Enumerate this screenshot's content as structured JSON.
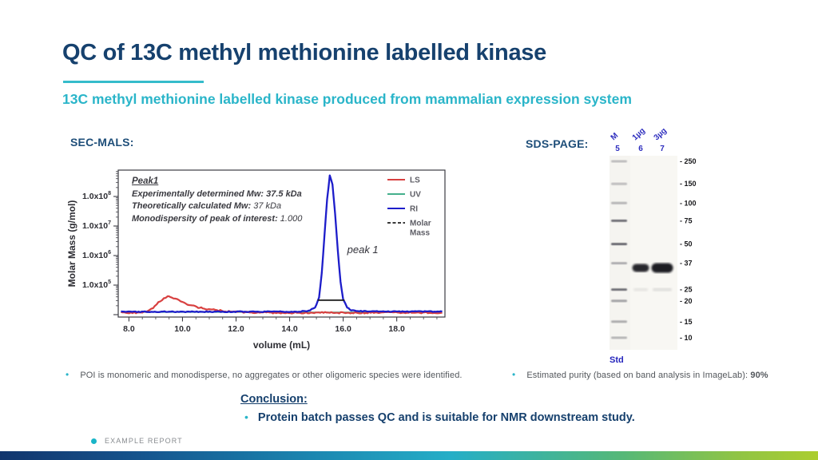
{
  "slide": {
    "title": "QC of 13C methyl methionine labelled kinase",
    "subtitle": "13C methyl methionine labelled kinase produced from mammalian expression system",
    "footer_text": "EXAMPLE REPORT"
  },
  "sec_mals": {
    "heading": "SEC-MALS:",
    "bullet": "POI is monomeric and monodisperse, no aggregates or other oligomeric species were identified."
  },
  "sds_page": {
    "heading": "SDS-PAGE:",
    "bullet_label": "Estimated purity (based on band analysis in ImageLab): ",
    "bullet_value": "90%",
    "gel": {
      "lane_loads": [
        "M",
        "1µg",
        "3µg"
      ],
      "lane_numbers": [
        "5",
        "6",
        "7"
      ],
      "std_label": "Std",
      "ladder_kda": [
        "250",
        "150",
        "100",
        "75",
        "50",
        "37",
        "25",
        "20",
        "15",
        "10"
      ],
      "ladder_fracs": [
        0.029,
        0.145,
        0.244,
        0.335,
        0.455,
        0.554,
        0.69,
        0.748,
        0.855,
        0.938
      ],
      "ladder_intensity": [
        0.3,
        0.3,
        0.35,
        0.75,
        0.8,
        0.4,
        0.75,
        0.45,
        0.4,
        0.35
      ],
      "sample_bands": [
        {
          "lane": 2,
          "frac": 0.578,
          "w": 21,
          "h": 10,
          "opacity": 0.92
        },
        {
          "lane": 3,
          "frac": 0.578,
          "w": 27,
          "h": 12,
          "opacity": 0.97
        }
      ],
      "faint_bands": [
        {
          "lane": 2,
          "frac": 0.69,
          "w": 18,
          "h": 4,
          "opacity": 0.08
        },
        {
          "lane": 3,
          "frac": 0.69,
          "w": 24,
          "h": 4,
          "opacity": 0.1
        }
      ]
    }
  },
  "conclusion": {
    "heading": "Conclusion:",
    "bullet": "Protein batch passes QC and is suitable for NMR downstream study."
  },
  "chart_data": {
    "type": "line",
    "title": "",
    "xlabel": "volume (mL)",
    "ylabel": "Molar Mass (g/mol)",
    "x_range": [
      7.6,
      19.8
    ],
    "x_major_ticks": [
      8,
      10,
      12,
      14,
      16,
      18
    ],
    "x_major_tick_labels": [
      "8.0",
      "10.0",
      "12.0",
      "14.0",
      "16.0",
      "18.0"
    ],
    "x_minor_tick_step": 0.5,
    "y_axis": {
      "scale": "log",
      "unit": "g/mol",
      "labeled_exponents": [
        8,
        7,
        6,
        5
      ],
      "label_mantissa": "1.0x10"
    },
    "grid": false,
    "legend": {
      "position": "top-right",
      "entries": [
        {
          "label": "LS",
          "color": "#d84040",
          "dash": false
        },
        {
          "label": "UV",
          "color": "#44b08c",
          "dash": false
        },
        {
          "label": "RI",
          "color": "#1d1dca",
          "dash": false
        },
        {
          "label": "Molar Mass",
          "color": "#3a3a3a",
          "dash": true
        }
      ]
    },
    "annotation": {
      "title": "Peak1",
      "lines": [
        {
          "label": "Experimentally determined Mw:",
          "value": " 37.5 kDa",
          "value_bold": true
        },
        {
          "label": "Theoretically calculated Mw:",
          "value": " 37 kDa",
          "value_bold": false
        },
        {
          "label": "Monodispersity of peak of interest:",
          "value": " 1.000",
          "value_bold": false
        }
      ]
    },
    "peak_label": {
      "text": "peak 1",
      "x": 16.15,
      "frac": 0.46
    },
    "series": [
      {
        "name": "UV",
        "color": "#44b08c",
        "width": 1.4,
        "noise": 0,
        "points": [
          [
            7.7,
            0.033
          ],
          [
            19.7,
            0.033
          ]
        ]
      },
      {
        "name": "LS",
        "color": "#d84040",
        "width": 2.2,
        "noise": 0.005,
        "points": [
          [
            7.7,
            0.03
          ],
          [
            8.2,
            0.03
          ],
          [
            8.5,
            0.032
          ],
          [
            8.7,
            0.042
          ],
          [
            8.9,
            0.065
          ],
          [
            9.1,
            0.098
          ],
          [
            9.3,
            0.128
          ],
          [
            9.45,
            0.14
          ],
          [
            9.6,
            0.134
          ],
          [
            9.8,
            0.118
          ],
          [
            10.0,
            0.1
          ],
          [
            10.3,
            0.08
          ],
          [
            10.7,
            0.062
          ],
          [
            11.1,
            0.05
          ],
          [
            11.6,
            0.04
          ],
          [
            12.1,
            0.035
          ],
          [
            12.7,
            0.031
          ],
          [
            13.5,
            0.029
          ],
          [
            14.5,
            0.029
          ],
          [
            15.5,
            0.03
          ],
          [
            16.5,
            0.029
          ],
          [
            17.5,
            0.03
          ],
          [
            18.5,
            0.029
          ],
          [
            19.7,
            0.03
          ]
        ]
      },
      {
        "name": "RI",
        "color": "#1d1dca",
        "width": 2.3,
        "noise": 0.003,
        "points": [
          [
            7.7,
            0.036
          ],
          [
            13.0,
            0.036
          ],
          [
            14.3,
            0.037
          ],
          [
            14.7,
            0.042
          ],
          [
            14.95,
            0.065
          ],
          [
            15.1,
            0.13
          ],
          [
            15.2,
            0.3
          ],
          [
            15.3,
            0.55
          ],
          [
            15.4,
            0.8
          ],
          [
            15.5,
            0.965
          ],
          [
            15.6,
            0.9
          ],
          [
            15.7,
            0.7
          ],
          [
            15.8,
            0.45
          ],
          [
            15.9,
            0.24
          ],
          [
            16.0,
            0.12
          ],
          [
            16.15,
            0.065
          ],
          [
            16.3,
            0.047
          ],
          [
            16.6,
            0.04
          ],
          [
            17.5,
            0.038
          ],
          [
            19.7,
            0.038
          ]
        ]
      }
    ],
    "molar_mass_segment": {
      "x1": 15.05,
      "x2": 16.05,
      "y": 0.115,
      "mw_kda": 37.5
    }
  }
}
